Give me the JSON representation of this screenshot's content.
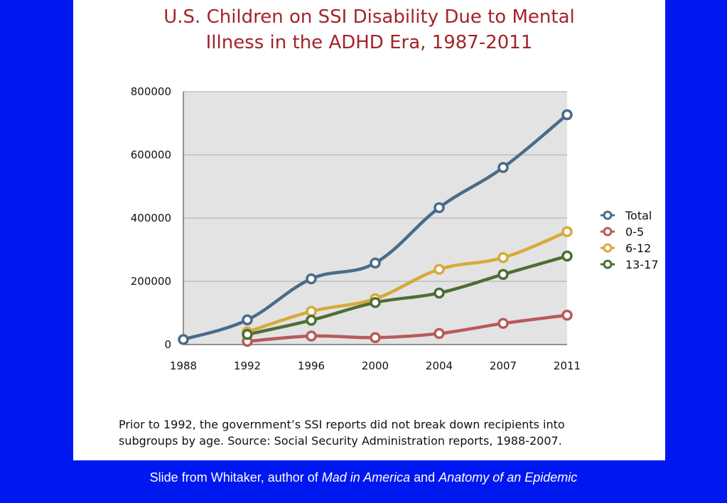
{
  "chart_data": {
    "type": "line",
    "title_line1": "U.S. Children on SSI Disability Due to Mental",
    "title_line2": "Illness in the ADHD Era, 1987-2011",
    "xlabel": "",
    "ylabel": "",
    "categories": [
      "1988",
      "1992",
      "1996",
      "2000",
      "2004",
      "2007",
      "2011"
    ],
    "ylim": [
      0,
      800000
    ],
    "yticks": [
      "800000",
      "600000",
      "400000",
      "200000",
      "0"
    ],
    "ytick_values": [
      800000,
      600000,
      400000,
      200000,
      0
    ],
    "grid": true,
    "legend_position": "right",
    "series": [
      {
        "name": "Total",
        "color": "#4a6b8a",
        "values": [
          16000,
          78000,
          208000,
          258000,
          433000,
          560000,
          727000
        ]
      },
      {
        "name": "0-5",
        "color": "#b85a5a",
        "values": [
          null,
          10000,
          27000,
          22000,
          35000,
          67000,
          93000
        ]
      },
      {
        "name": "6-12",
        "color": "#d7a93a",
        "values": [
          null,
          40000,
          105000,
          145000,
          238000,
          275000,
          357000
        ]
      },
      {
        "name": "13-17",
        "color": "#4d6e34",
        "values": [
          null,
          32000,
          77000,
          133000,
          163000,
          222000,
          280000
        ]
      }
    ]
  },
  "note": {
    "line1": "Prior to 1992, the government’s SSI reports did not break down recipients into",
    "line2": "subgroups by age. Source:  Social Security Administration reports, 1988-2007."
  },
  "caption": {
    "prefix": "Slide from Whitaker, author of ",
    "book1": "Mad in America",
    "connector": " and ",
    "book2": "Anatomy of an Epidemic"
  },
  "colors": {
    "background": "#0018f0",
    "title": "#a3242a",
    "plot_area": "#e3e3e3"
  }
}
